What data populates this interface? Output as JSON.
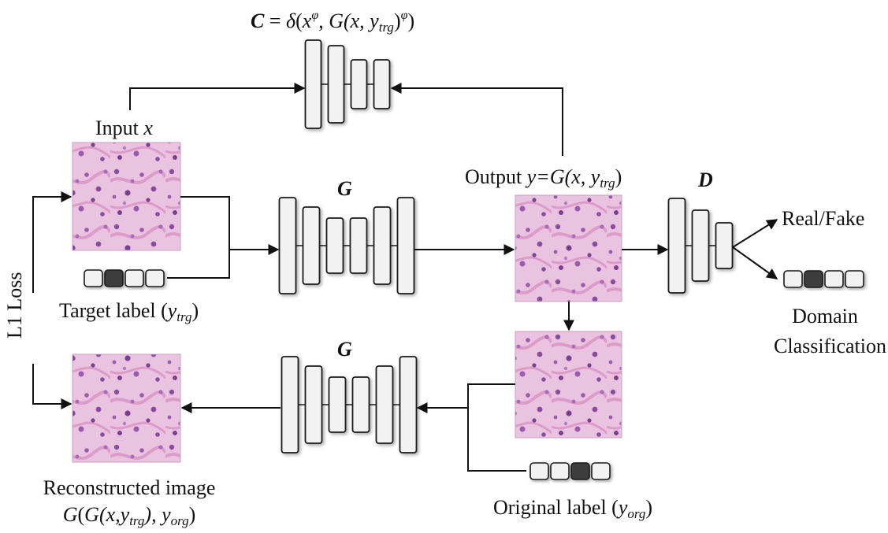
{
  "labels": {
    "consistency_formula": {
      "c": "C",
      "eq": " = ",
      "delta": "δ",
      "open": "(",
      "x": "x",
      "phi1": "φ",
      "comma": ", ",
      "g": "G",
      "args": "(x, y",
      "trg": "trg",
      "close": ")",
      "phi2": "φ",
      "end": ")"
    },
    "input": {
      "text": "Input ",
      "var": "x"
    },
    "output": {
      "text": "Output ",
      "expr": "y=G(x, y",
      "trg": "trg",
      "close": ")"
    },
    "generator_top": "G",
    "generator_bottom": "G",
    "discriminator": "D",
    "real_fake": "Real/Fake",
    "domain_classification": [
      "Domain",
      "Classification"
    ],
    "target_label": {
      "text": "Target label (",
      "var": "y",
      "sub": "trg",
      "close": ")"
    },
    "l1_loss": "L1 Loss",
    "reconstructed": {
      "line1": "Reconstructed image",
      "g1": "G",
      "p1": "(",
      "g2": "G",
      "args": "(x,y",
      "trg": "trg",
      "mid": "), y",
      "org": "org",
      "end": ")"
    },
    "original_label": {
      "text": "Original label (",
      "var": "y",
      "sub": "org",
      "close": ")"
    }
  },
  "label_vectors": {
    "target": [
      false,
      true,
      false,
      false
    ],
    "domain": [
      false,
      true,
      false,
      false
    ],
    "original": [
      false,
      false,
      true,
      false
    ]
  },
  "colors": {
    "block_fill": "#f2f2f2",
    "block_stroke": "#1a1a1a",
    "active_cell": "#3c3c3c",
    "tissue_bg": "#e9c3df",
    "tissue_nucleus": "#8a4c9e",
    "tissue_stroma": "#d98ac4"
  },
  "icons": [
    "histology-image-input",
    "histology-image-output",
    "histology-image-reconstructed",
    "histology-image-original-branch"
  ]
}
